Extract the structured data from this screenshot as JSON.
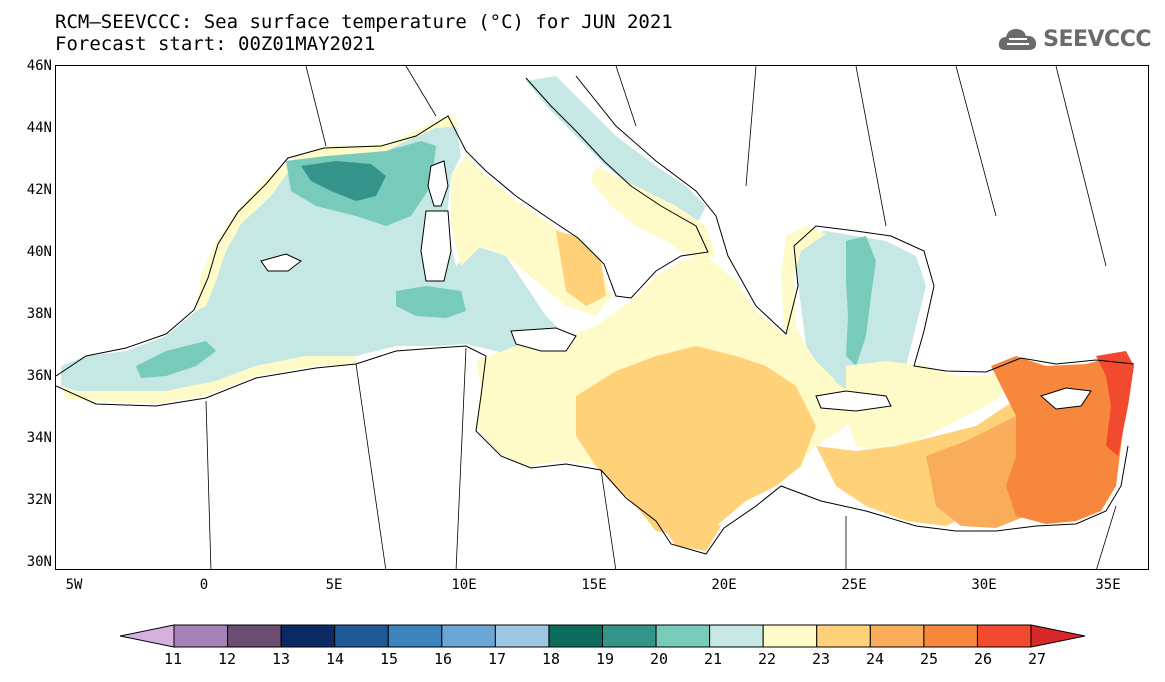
{
  "title": {
    "line1": "RCM—SEEVCCC: Sea surface temperature (°C) for JUN 2021",
    "line2": "Forecast start: 00Z01MAY2021"
  },
  "logo": {
    "text": "SEEVCCC",
    "icon": "cloud-icon",
    "color": "#6b6b6b"
  },
  "axes": {
    "y_labels": [
      "46N",
      "44N",
      "42N",
      "40N",
      "38N",
      "36N",
      "34N",
      "32N",
      "30N"
    ],
    "x_labels": [
      "5W",
      "0",
      "5E",
      "10E",
      "15E",
      "20E",
      "25E",
      "30E",
      "35E"
    ]
  },
  "colorbar": {
    "labels": [
      "11",
      "12",
      "13",
      "14",
      "15",
      "16",
      "17",
      "18",
      "19",
      "20",
      "21",
      "22",
      "23",
      "24",
      "25",
      "26",
      "27"
    ],
    "colors": [
      "#d6b1de",
      "#a682b9",
      "#6b4d72",
      "#0b2a64",
      "#1f5a96",
      "#3c84bd",
      "#6aa7d6",
      "#9dc7e2",
      "#0d6b5b",
      "#35948a",
      "#78cbbb",
      "#c5e8e4",
      "#fffbc9",
      "#ffd27a",
      "#f9ad5b",
      "#f8873e",
      "#f24a2f",
      "#d8282a"
    ]
  },
  "legend_colors": {
    "land": "#ffffff",
    "sst_22": "#c5e8e4",
    "sst_23": "#fffbc9",
    "sst_24": "#ffd27a",
    "sst_25": "#f9ad5b",
    "sst_26": "#f8873e",
    "sst_20": "#78cbbb",
    "sst_19": "#35948a"
  }
}
